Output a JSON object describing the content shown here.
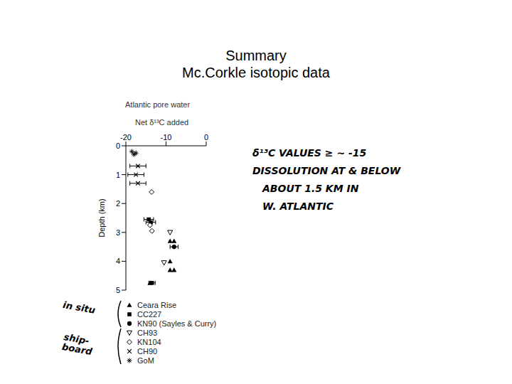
{
  "slide": {
    "title": "Summary",
    "subtitle": "Mc.Corkle isotopic data"
  },
  "chart_data": {
    "type": "scatter",
    "title": "Atlantic pore water",
    "x_label": "Net δ¹³C added",
    "y_label": "Depth (km)",
    "xlim": [
      -20,
      0
    ],
    "xticks": [
      -20,
      -10,
      0
    ],
    "ylim": [
      0,
      5
    ],
    "yticks": [
      0,
      1,
      2,
      3,
      4,
      5
    ],
    "grid": false,
    "series": [
      {
        "name": "Ceara Rise",
        "color": "#000000",
        "marker": "triangle",
        "x": [
          -9,
          -8,
          -9,
          -9,
          -8,
          -14
        ],
        "y": [
          3.3,
          3.3,
          4.0,
          4.3,
          4.3,
          4.75
        ]
      },
      {
        "name": "CC227",
        "color": "#000000",
        "marker": "square",
        "x": [
          -14.3,
          -13.8,
          -13.5
        ],
        "y": [
          2.55,
          2.65,
          4.75
        ],
        "x_err": [
          1.2,
          1.2,
          0.8
        ]
      },
      {
        "name": "KN90 (Sayles & Curry)",
        "color": "#000000",
        "marker": "circle",
        "x": [
          -8
        ],
        "y": [
          3.5
        ],
        "x_err": [
          1
        ]
      },
      {
        "name": "CH93",
        "color": "#000000",
        "marker": "triangle-down-open",
        "x": [
          -9,
          -10.5
        ],
        "y": [
          3.0,
          4.05
        ]
      },
      {
        "name": "KN104",
        "color": "#000000",
        "marker": "diamond-open",
        "x": [
          -13.6,
          -14,
          -13.5
        ],
        "y": [
          1.6,
          2.75,
          2.95
        ]
      },
      {
        "name": "CH90",
        "color": "#000000",
        "marker": "x",
        "x": [
          -17,
          -17.5,
          -17
        ],
        "y": [
          0.7,
          1.0,
          1.3
        ],
        "x_err": [
          2,
          2,
          2
        ]
      },
      {
        "name": "GoM",
        "color": "#000000",
        "marker": "star",
        "x": [
          -18.5,
          -17.5,
          -18
        ],
        "y": [
          0.2,
          0.25,
          0.3
        ]
      }
    ],
    "legend_groups": [
      {
        "label": "in situ",
        "series": [
          "Ceara Rise",
          "CC227",
          "KN90 (Sayles & Curry)"
        ]
      },
      {
        "label": "ship-board",
        "series": [
          "CH93",
          "KN104",
          "CH90",
          "GoM"
        ]
      }
    ],
    "annotations": [
      "δ¹³C VALUES ≥ ~ -15",
      "DISSOLUTION AT & BELOW",
      "ABOUT 1.5 KM IN",
      "W. ATLANTIC"
    ]
  }
}
